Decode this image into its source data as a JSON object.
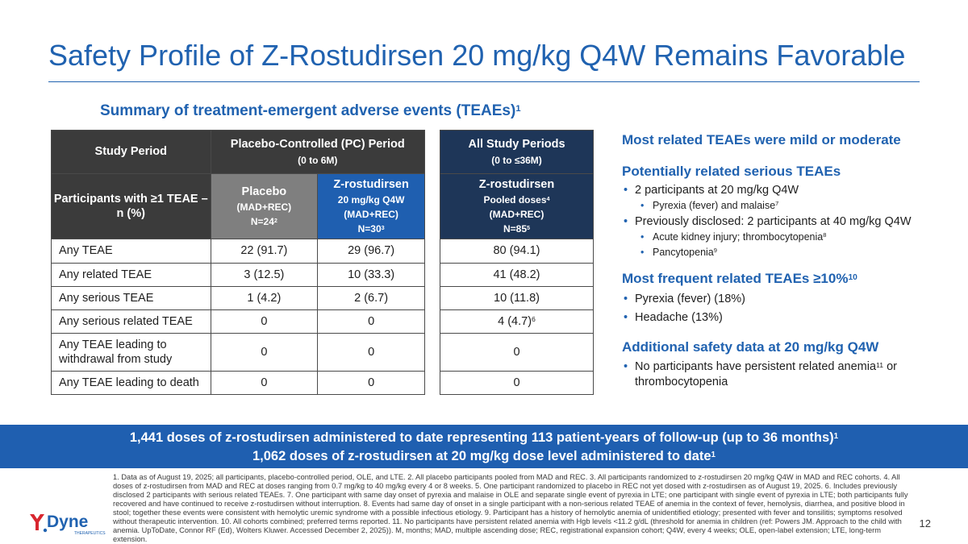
{
  "title": "Safety Profile of Z-Rostudirsen 20 mg/kg Q4W Remains Favorable",
  "subtitle": {
    "text": "Summary of treatment-emergent adverse events (TEAEs)",
    "sup": "1"
  },
  "table": {
    "study_period_label": "Study Period",
    "pc_period": {
      "title": "Placebo-Controlled (PC) Period",
      "range": "(0 to 6M)"
    },
    "all_periods": {
      "title": "All Study Periods",
      "range": "(0 to ≤36M)"
    },
    "participants_label": "Participants with ≥1 TEAE – n (%)",
    "placebo": {
      "name": "Placebo",
      "cohort": "(MAD+REC)",
      "n": "N=24",
      "n_sup": "2"
    },
    "zros_20": {
      "name": "Z-rostudirsen",
      "dose": "20 mg/kg Q4W",
      "cohort": "(MAD+REC)",
      "n": "N=30",
      "n_sup": "3"
    },
    "zros_pooled": {
      "name": "Z-rostudirsen",
      "dose": "Pooled doses",
      "dose_sup": "4",
      "cohort": "(MAD+REC)",
      "n": "N=85",
      "n_sup": "5"
    },
    "rows": [
      {
        "label": "Any TEAE",
        "placebo": "22 (91.7)",
        "zros20": "29 (96.7)",
        "pooled": "80 (94.1)",
        "pooled_sup": ""
      },
      {
        "label": "Any related TEAE",
        "placebo": "3 (12.5)",
        "zros20": "10 (33.3)",
        "pooled": "41 (48.2)",
        "pooled_sup": ""
      },
      {
        "label": "Any serious TEAE",
        "placebo": "1 (4.2)",
        "zros20": "2 (6.7)",
        "pooled": "10 (11.8)",
        "pooled_sup": ""
      },
      {
        "label": "Any serious related TEAE",
        "placebo": "0",
        "zros20": "0",
        "pooled": "4 (4.7)",
        "pooled_sup": "6"
      },
      {
        "label": "Any TEAE leading to withdrawal from study",
        "placebo": "0",
        "zros20": "0",
        "pooled": "0",
        "pooled_sup": ""
      },
      {
        "label": "Any TEAE leading to death",
        "placebo": "0",
        "zros20": "0",
        "pooled": "0",
        "pooled_sup": ""
      }
    ]
  },
  "right_panel": {
    "mild_heading": "Most related TEAEs were mild or moderate",
    "serious_heading": "Potentially related serious TEAEs",
    "serious_b1": "2 participants at 20 mg/kg Q4W",
    "serious_b1_sub": "Pyrexia (fever) and malaise",
    "serious_b1_sub_sup": "7",
    "serious_b2": "Previously disclosed: 2 participants at 40 mg/kg Q4W",
    "serious_b2_sub1": "Acute kidney injury; thrombocytopenia",
    "serious_b2_sub1_sup": "8",
    "serious_b2_sub2": "Pancytopenia",
    "serious_b2_sub2_sup": "9",
    "frequent_heading": "Most frequent related TEAEs ≥10%",
    "frequent_heading_sup": "10",
    "frequent_b1": "Pyrexia (fever) (18%)",
    "frequent_b2": "Headache (13%)",
    "additional_heading": "Additional safety data at 20 mg/kg Q4W",
    "additional_b1_part1": "No participants have persistent related anemia",
    "additional_b1_sup": "11",
    "additional_b1_part2": " or thrombocytopenia"
  },
  "banner": {
    "line1": "1,441 doses of z-rostudirsen administered to date representing 113 patient-years of follow-up (up to 36 months)",
    "line1_sup": "1",
    "line2": "1,062 doses of z-rostudirsen at 20 mg/kg dose level administered to date",
    "line2_sup": "1"
  },
  "footnote": "1. Data as of August 19, 2025; all participants, placebo-controlled period, OLE, and LTE. 2. All placebo participants pooled from MAD and REC. 3. All participants randomized to z-rostudirsen 20 mg/kg Q4W in MAD and REC cohorts. 4. All doses of z-rostudirsen from MAD and REC at doses ranging from 0.7 mg/kg to 40 mg/kg every 4 or 8 weeks. 5. One participant randomized to placebo in REC not yet dosed with z-rostudirsen as of August 19, 2025. 6. Includes previously disclosed 2 participants with serious related TEAEs. 7. One participant with same day onset of pyrexia and malaise in OLE and separate single event of pyrexia in LTE; one participant with single event of pyrexia in LTE; both participants fully recovered and have continued to receive z-rostudirsen without interruption. 8. Events had same day of onset in a single participant with a non-serious related TEAE of anemia in the context of fever, hemolysis, diarrhea, and positive blood in stool; together these events were consistent with hemolytic uremic syndrome with a possible infectious etiology. 9. Participant has a history of hemolytic anemia of unidentified etiology; presented with fever and tonsilitis; symptoms resolved without therapeutic intervention. 10. All cohorts combined; preferred terms reported. 11. No participants have persistent related anemia with Hgb levels <11.2 g/dL (threshold for anemia in children (ref: Powers JM. Approach to the child with anemia. UpToDate, Connor RF (Ed), Wolters Kluwer. Accessed December 2, 2025)). M, months; MAD, multiple ascending dose; REC, registrational expansion cohort; Q4W, every 4 weeks; OLE, open-label extension; LTE, long-term extension.",
  "page_number": "12",
  "logo": {
    "wordmark": "Dyne",
    "tagline": "THERAPEUTICS"
  },
  "colors": {
    "accent_blue": "#2062b0",
    "banner_blue": "#1f5fb0",
    "navy": "#1e3658",
    "dark_gray": "#3b3b3b",
    "mid_gray": "#7f7f7f",
    "logo_red": "#d8262f"
  }
}
